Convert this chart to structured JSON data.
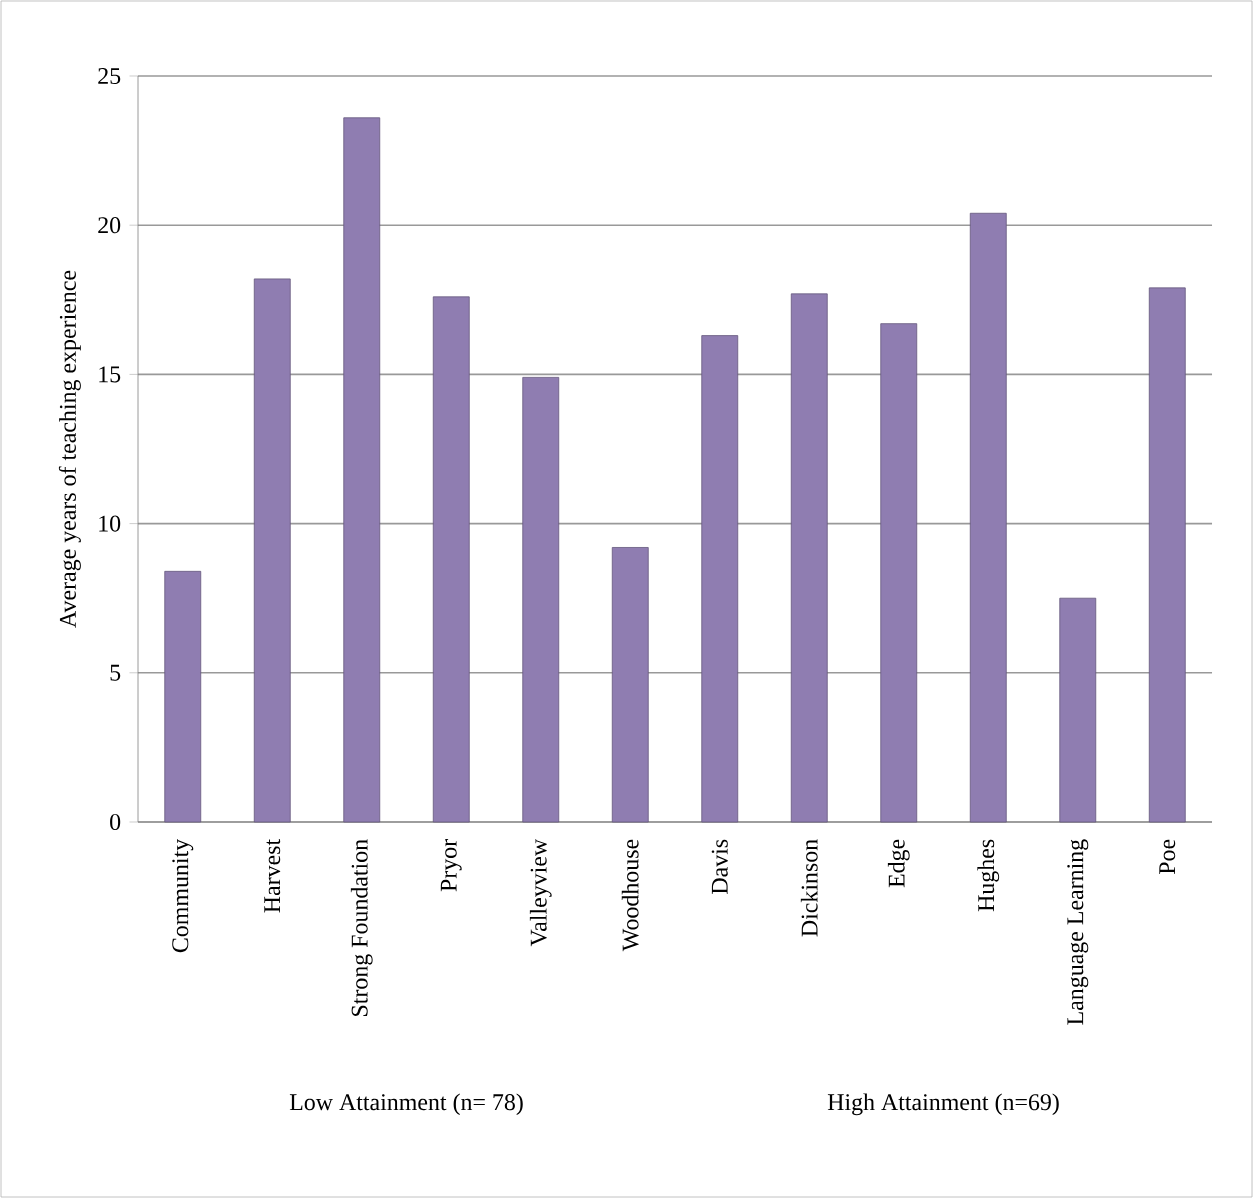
{
  "chart_data": {
    "type": "bar",
    "ylabel": "Average years of teaching experience",
    "categories": [
      "Community",
      "Harvest",
      "Strong Foundation",
      "Pryor",
      "Valleyview",
      "Woodhouse",
      "Davis",
      "Dickinson",
      "Edge",
      "Hughes",
      "Language Learning",
      "Poe"
    ],
    "values": [
      8.4,
      18.2,
      23.6,
      17.6,
      14.9,
      9.2,
      16.3,
      17.7,
      16.7,
      20.4,
      7.5,
      17.9
    ],
    "color": "#8f7db1",
    "ylim": [
      0,
      25
    ],
    "yticks": [
      0,
      5,
      10,
      15,
      20,
      25
    ],
    "grid": "y",
    "annotations": [
      "Low Attainment   (n= 78)",
      "High Attainment   (n=69)"
    ]
  }
}
